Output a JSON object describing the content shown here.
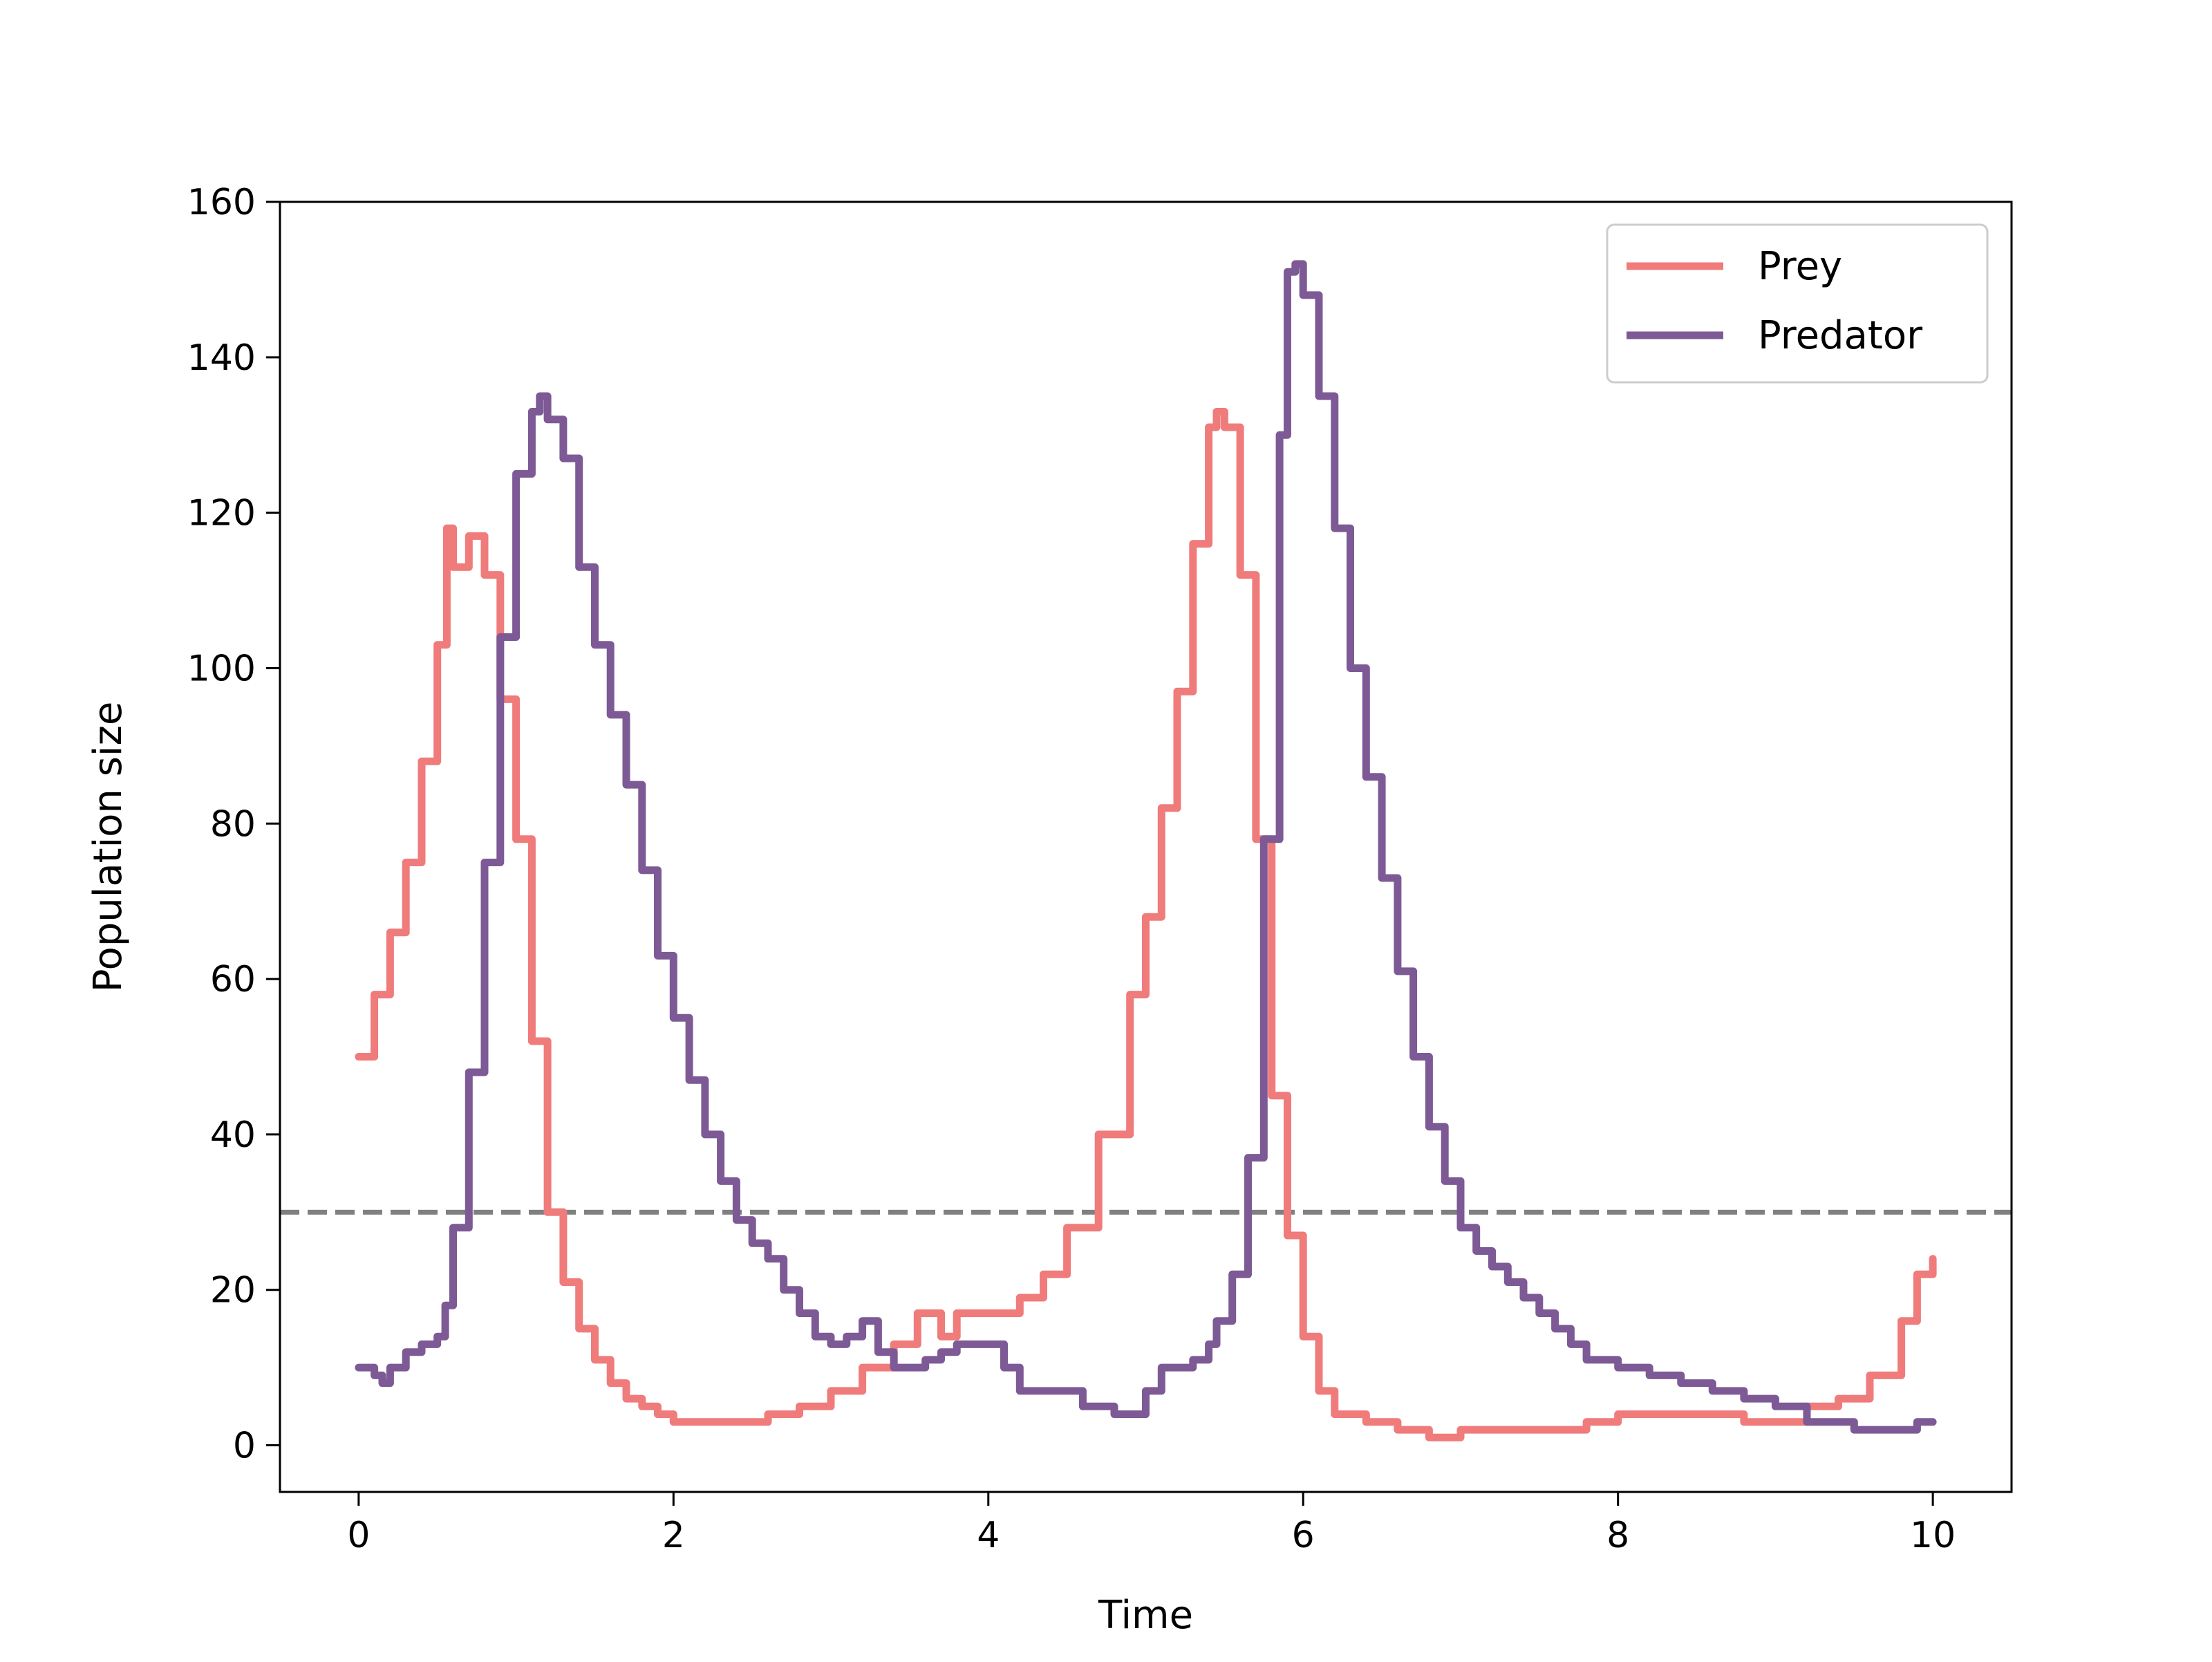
{
  "chart_data": {
    "type": "line",
    "title": "",
    "xlabel": "Time",
    "ylabel": "Population size",
    "xlim": [
      -0.5,
      10.5
    ],
    "ylim": [
      -6,
      160
    ],
    "xticks": [
      0,
      2,
      4,
      6,
      8,
      10
    ],
    "yticks": [
      0,
      20,
      40,
      60,
      80,
      100,
      120,
      140,
      160
    ],
    "grid": false,
    "legend_position": "top-right",
    "reference_line": {
      "y": 30,
      "style": "dashed",
      "color": "#808080"
    },
    "series": [
      {
        "name": "Prey",
        "color": "#f07b7b",
        "points": [
          [
            0.0,
            50
          ],
          [
            0.1,
            58
          ],
          [
            0.2,
            66
          ],
          [
            0.3,
            75
          ],
          [
            0.4,
            88
          ],
          [
            0.5,
            103
          ],
          [
            0.56,
            118
          ],
          [
            0.6,
            113
          ],
          [
            0.7,
            117
          ],
          [
            0.8,
            112
          ],
          [
            0.9,
            96
          ],
          [
            1.0,
            78
          ],
          [
            1.1,
            52
          ],
          [
            1.2,
            30
          ],
          [
            1.3,
            21
          ],
          [
            1.4,
            15
          ],
          [
            1.5,
            11
          ],
          [
            1.6,
            8
          ],
          [
            1.7,
            6
          ],
          [
            1.8,
            5
          ],
          [
            1.9,
            4
          ],
          [
            2.0,
            3
          ],
          [
            2.2,
            3
          ],
          [
            2.4,
            3
          ],
          [
            2.6,
            4
          ],
          [
            2.8,
            5
          ],
          [
            3.0,
            7
          ],
          [
            3.2,
            10
          ],
          [
            3.4,
            13
          ],
          [
            3.55,
            17
          ],
          [
            3.7,
            14
          ],
          [
            3.8,
            17
          ],
          [
            4.0,
            17
          ],
          [
            4.2,
            19
          ],
          [
            4.35,
            22
          ],
          [
            4.5,
            28
          ],
          [
            4.7,
            40
          ],
          [
            4.9,
            58
          ],
          [
            5.0,
            68
          ],
          [
            5.1,
            82
          ],
          [
            5.2,
            97
          ],
          [
            5.3,
            116
          ],
          [
            5.4,
            131
          ],
          [
            5.45,
            133
          ],
          [
            5.5,
            131
          ],
          [
            5.6,
            112
          ],
          [
            5.7,
            78
          ],
          [
            5.8,
            45
          ],
          [
            5.9,
            27
          ],
          [
            6.0,
            14
          ],
          [
            6.1,
            7
          ],
          [
            6.2,
            4
          ],
          [
            6.4,
            3
          ],
          [
            6.6,
            2
          ],
          [
            6.8,
            1
          ],
          [
            7.0,
            2
          ],
          [
            7.3,
            2
          ],
          [
            7.6,
            2
          ],
          [
            7.8,
            3
          ],
          [
            8.0,
            4
          ],
          [
            8.3,
            4
          ],
          [
            8.6,
            4
          ],
          [
            8.8,
            3
          ],
          [
            9.0,
            3
          ],
          [
            9.2,
            5
          ],
          [
            9.4,
            6
          ],
          [
            9.6,
            9
          ],
          [
            9.8,
            16
          ],
          [
            9.9,
            22
          ],
          [
            10.0,
            24
          ]
        ]
      },
      {
        "name": "Predator",
        "color": "#7d5a96",
        "points": [
          [
            0.0,
            10
          ],
          [
            0.1,
            9
          ],
          [
            0.15,
            8
          ],
          [
            0.2,
            10
          ],
          [
            0.3,
            12
          ],
          [
            0.4,
            13
          ],
          [
            0.5,
            14
          ],
          [
            0.55,
            18
          ],
          [
            0.6,
            28
          ],
          [
            0.7,
            48
          ],
          [
            0.8,
            75
          ],
          [
            0.9,
            104
          ],
          [
            1.0,
            125
          ],
          [
            1.1,
            133
          ],
          [
            1.15,
            135
          ],
          [
            1.2,
            132
          ],
          [
            1.3,
            127
          ],
          [
            1.4,
            113
          ],
          [
            1.5,
            103
          ],
          [
            1.6,
            94
          ],
          [
            1.7,
            85
          ],
          [
            1.8,
            74
          ],
          [
            1.9,
            63
          ],
          [
            2.0,
            55
          ],
          [
            2.1,
            47
          ],
          [
            2.2,
            40
          ],
          [
            2.3,
            34
          ],
          [
            2.4,
            29
          ],
          [
            2.5,
            26
          ],
          [
            2.6,
            24
          ],
          [
            2.7,
            20
          ],
          [
            2.8,
            17
          ],
          [
            2.9,
            14
          ],
          [
            3.0,
            13
          ],
          [
            3.1,
            14
          ],
          [
            3.2,
            16
          ],
          [
            3.3,
            12
          ],
          [
            3.4,
            10
          ],
          [
            3.5,
            10
          ],
          [
            3.6,
            11
          ],
          [
            3.7,
            12
          ],
          [
            3.8,
            13
          ],
          [
            4.0,
            13
          ],
          [
            4.1,
            10
          ],
          [
            4.2,
            7
          ],
          [
            4.4,
            7
          ],
          [
            4.6,
            5
          ],
          [
            4.8,
            4
          ],
          [
            4.95,
            4
          ],
          [
            5.0,
            7
          ],
          [
            5.1,
            10
          ],
          [
            5.3,
            11
          ],
          [
            5.4,
            13
          ],
          [
            5.45,
            16
          ],
          [
            5.55,
            22
          ],
          [
            5.65,
            37
          ],
          [
            5.75,
            78
          ],
          [
            5.85,
            130
          ],
          [
            5.9,
            151
          ],
          [
            5.95,
            152
          ],
          [
            6.0,
            148
          ],
          [
            6.1,
            135
          ],
          [
            6.2,
            118
          ],
          [
            6.3,
            100
          ],
          [
            6.4,
            86
          ],
          [
            6.5,
            73
          ],
          [
            6.6,
            61
          ],
          [
            6.7,
            50
          ],
          [
            6.8,
            41
          ],
          [
            6.9,
            34
          ],
          [
            7.0,
            28
          ],
          [
            7.1,
            25
          ],
          [
            7.2,
            23
          ],
          [
            7.3,
            21
          ],
          [
            7.4,
            19
          ],
          [
            7.5,
            17
          ],
          [
            7.6,
            15
          ],
          [
            7.7,
            13
          ],
          [
            7.8,
            11
          ],
          [
            8.0,
            10
          ],
          [
            8.2,
            9
          ],
          [
            8.4,
            8
          ],
          [
            8.6,
            7
          ],
          [
            8.8,
            6
          ],
          [
            9.0,
            5
          ],
          [
            9.2,
            3
          ],
          [
            9.5,
            2
          ],
          [
            9.8,
            2
          ],
          [
            9.9,
            3
          ],
          [
            10.0,
            3
          ]
        ]
      }
    ]
  }
}
